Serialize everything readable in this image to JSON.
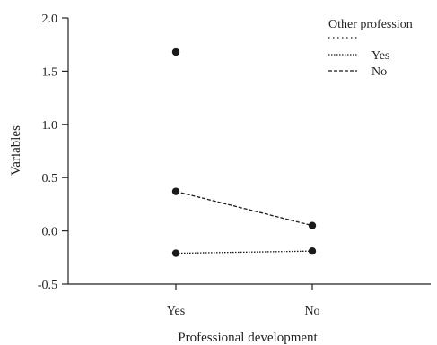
{
  "chart_data": {
    "type": "line",
    "title": "",
    "xlabel": "Professional development",
    "ylabel": "Variables",
    "categories": [
      "Yes",
      "No"
    ],
    "ylim": [
      -0.5,
      2.0
    ],
    "yticks": [
      "2.0",
      "1.5",
      "1.0",
      "0.5",
      "0.0",
      "-0.5"
    ],
    "grid": false,
    "legend": {
      "title": "Other profession",
      "placement": "top-right",
      "entries": [
        "",
        "Yes",
        "No"
      ]
    },
    "series": [
      {
        "name": "",
        "style": "sparse-dotted",
        "values": [
          1.68,
          null
        ]
      },
      {
        "name": "Yes",
        "style": "dotted",
        "values": [
          -0.21,
          -0.19
        ]
      },
      {
        "name": "No",
        "style": "dashed",
        "values": [
          0.37,
          0.05
        ]
      }
    ],
    "colors": {
      "marks": "#1a1a1a",
      "axis": "#222222"
    }
  }
}
